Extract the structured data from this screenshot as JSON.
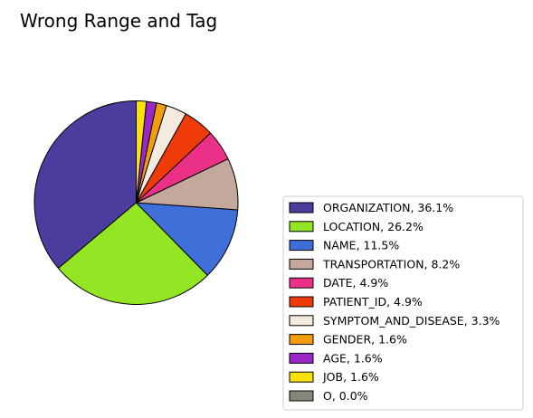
{
  "chart_data": {
    "type": "pie",
    "title": "Wrong Range and Tag",
    "slices": [
      {
        "label": "ORGANIZATION",
        "value": 36.1,
        "color": "#4B3D9E"
      },
      {
        "label": "LOCATION",
        "value": 26.2,
        "color": "#94E523"
      },
      {
        "label": "NAME",
        "value": 11.5,
        "color": "#3F6FD8"
      },
      {
        "label": "TRANSPORTATION",
        "value": 8.2,
        "color": "#C4A89B"
      },
      {
        "label": "DATE",
        "value": 4.9,
        "color": "#EB3087"
      },
      {
        "label": "PATIENT_ID",
        "value": 4.9,
        "color": "#EE3B09"
      },
      {
        "label": "SYMPTOM_AND_DISEASE",
        "value": 3.3,
        "color": "#F4EADD"
      },
      {
        "label": "GENDER",
        "value": 1.6,
        "color": "#F19D0E"
      },
      {
        "label": "AGE",
        "value": 1.6,
        "color": "#9B27C9"
      },
      {
        "label": "JOB",
        "value": 1.6,
        "color": "#F9E20C"
      },
      {
        "label": "O",
        "value": 0.0,
        "color": "#85877A"
      }
    ],
    "legend_entries": [
      "ORGANIZATION, 36.1%",
      "LOCATION, 26.2%",
      "NAME, 11.5%",
      "TRANSPORTATION, 8.2%",
      "DATE, 4.9%",
      "PATIENT_ID, 4.9%",
      "SYMPTOM_AND_DISEASE, 3.3%",
      "GENDER, 1.6%",
      "AGE, 1.6%",
      "JOB, 1.6%",
      "O, 0.0%"
    ],
    "start_angle_deg": 90,
    "direction": "counterclockwise",
    "legend_position": "lower-right"
  }
}
